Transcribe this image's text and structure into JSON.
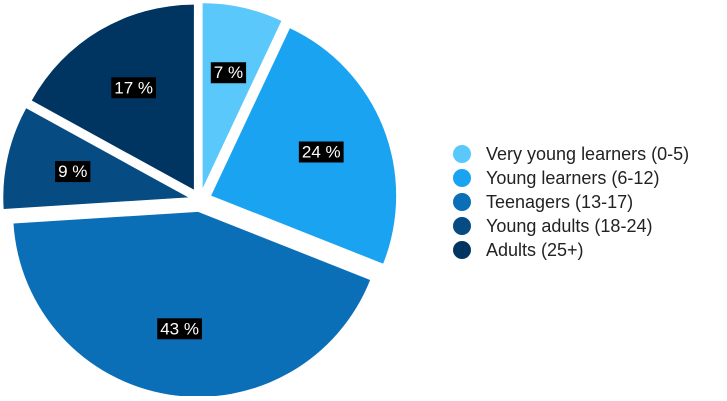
{
  "chart_data": {
    "type": "pie",
    "title": "",
    "slices": [
      {
        "label": "Very young learners (0-5)",
        "value": 7,
        "display": "7 %",
        "color": "#5ac8fa"
      },
      {
        "label": "Young learners (6-12)",
        "value": 24,
        "display": "24 %",
        "color": "#1aa3f0"
      },
      {
        "label": "Teenagers (13-17)",
        "value": 43,
        "display": "43 %",
        "color": "#0b6fb8"
      },
      {
        "label": "Young adults (18-24)",
        "value": 9,
        "display": "9 %",
        "color": "#064b82"
      },
      {
        "label": "Adults (25+)",
        "value": 17,
        "display": "17 %",
        "color": "#003562"
      }
    ],
    "exploded": true,
    "legend_position": "right",
    "label_style": "white text on black box"
  }
}
